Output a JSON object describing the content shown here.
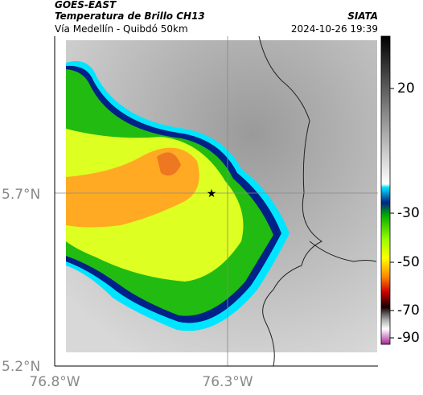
{
  "header": {
    "title": "GOES-EAST",
    "subtitle": "Temperatura de Brillo CH13",
    "location": "Vía Medellín - Quibdó 50km",
    "source": "SIATA",
    "datetime": "2024-10-26 19:39"
  },
  "axes": {
    "y_labels": [
      "5.7°N",
      "5.2°N"
    ],
    "x_labels": [
      "76.8°W",
      "76.3°W"
    ]
  },
  "colorbar": {
    "ticks": [
      20,
      -30,
      -50,
      -70,
      -90
    ]
  }
}
